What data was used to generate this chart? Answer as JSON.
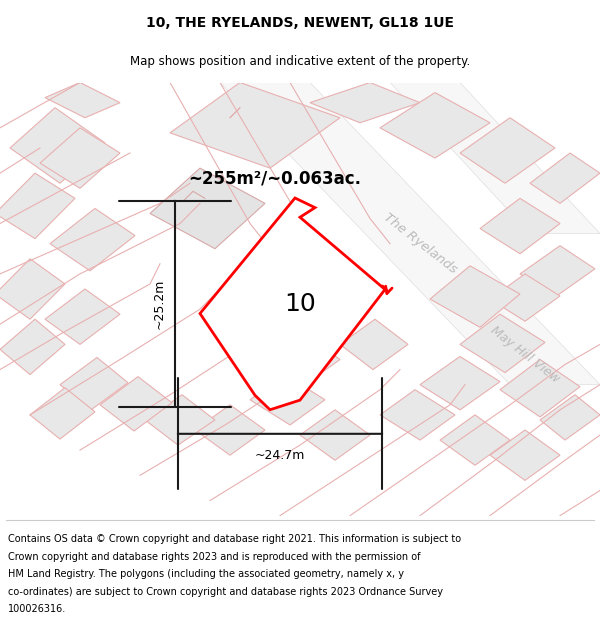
{
  "title": "10, THE RYELANDS, NEWENT, GL18 1UE",
  "subtitle": "Map shows position and indicative extent of the property.",
  "footer_lines": [
    "Contains OS data © Crown copyright and database right 2021. This information is subject to",
    "Crown copyright and database rights 2023 and is reproduced with the permission of",
    "HM Land Registry. The polygons (including the associated geometry, namely x, y",
    "co-ordinates) are subject to Crown copyright and database rights 2023 Ordnance Survey",
    "100026316."
  ],
  "area_label": "~255m²/~0.063ac.",
  "width_label": "~24.7m",
  "height_label": "~25.2m",
  "plot_number": "10",
  "road_label_1": "The Ryelands",
  "road_label_2": "May Hill View",
  "bg_color": "#ffffff",
  "map_bg": "#ffffff",
  "building_fill": "#e8e8e8",
  "building_edge": "#e0a0a0",
  "road_line_color": "#e8b0b0",
  "road_fill": "#f0f0f0",
  "dim_line_color": "#1a1a1a",
  "highlight_color": "#ff0000",
  "road_text_color": "#bbbbbb",
  "title_fontsize": 10,
  "subtitle_fontsize": 8.5,
  "footer_fontsize": 7.0
}
